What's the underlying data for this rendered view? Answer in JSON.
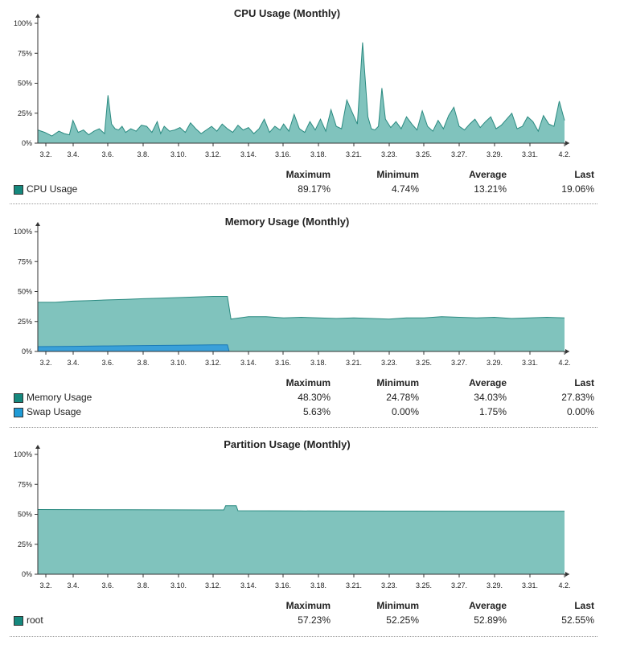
{
  "stat_headers": [
    "Maximum",
    "Minimum",
    "Average",
    "Last"
  ],
  "colors": {
    "fill": "#80c3bd",
    "stroke": "#2a8a80",
    "swap_fill": "#3aa0d9",
    "swap_stroke": "#1a7ab5",
    "swatch_teal": "#15887d",
    "swatch_blue": "#1f9bd6"
  },
  "panels": [
    {
      "id": "cpu",
      "title": "CPU Usage (Monthly)",
      "series_stats": [
        {
          "name": "CPU Usage",
          "swatch": "teal",
          "values": [
            "89.17%",
            "4.74%",
            "13.21%",
            "19.06%"
          ]
        }
      ]
    },
    {
      "id": "memory",
      "title": "Memory Usage (Monthly)",
      "series_stats": [
        {
          "name": "Memory Usage",
          "swatch": "teal",
          "values": [
            "48.30%",
            "24.78%",
            "34.03%",
            "27.83%"
          ]
        },
        {
          "name": "Swap Usage",
          "swatch": "blue",
          "values": [
            "5.63%",
            "0.00%",
            "1.75%",
            "0.00%"
          ]
        }
      ]
    },
    {
      "id": "partition",
      "title": "Partition Usage (Monthly)",
      "series_stats": [
        {
          "name": "root",
          "swatch": "teal",
          "values": [
            "57.23%",
            "52.25%",
            "52.89%",
            "52.55%"
          ]
        }
      ]
    }
  ],
  "chart_data": [
    {
      "type": "area",
      "title": "CPU Usage (Monthly)",
      "ylim": [
        0,
        100
      ],
      "y_ticks": [
        "0%",
        "25%",
        "50%",
        "75%",
        "100%"
      ],
      "x_ticks": [
        "3.2.",
        "3.4.",
        "3.6.",
        "3.8.",
        "3.10.",
        "3.12.",
        "3.14.",
        "3.16.",
        "3.18.",
        "3.21.",
        "3.23.",
        "3.25.",
        "3.27.",
        "3.29.",
        "3.31.",
        "4.2."
      ],
      "series": [
        {
          "name": "CPU Usage",
          "x_day": [
            0,
            0.4,
            0.8,
            1.2,
            1.5,
            1.8,
            2.0,
            2.3,
            2.6,
            2.9,
            3.2,
            3.5,
            3.8,
            4.0,
            4.2,
            4.4,
            4.6,
            4.8,
            5.0,
            5.3,
            5.6,
            5.9,
            6.2,
            6.5,
            6.8,
            7.0,
            7.2,
            7.5,
            7.8,
            8.1,
            8.4,
            8.7,
            9.0,
            9.3,
            9.6,
            9.9,
            10.2,
            10.5,
            10.8,
            11.1,
            11.4,
            11.7,
            12.0,
            12.3,
            12.6,
            12.9,
            13.2,
            13.5,
            13.8,
            14.0,
            14.3,
            14.6,
            14.9,
            15.2,
            15.5,
            15.8,
            16.1,
            16.4,
            16.7,
            17.0,
            17.3,
            17.6,
            17.9,
            18.2,
            18.5,
            18.8,
            19.0,
            19.2,
            19.4,
            19.6,
            19.8,
            20.1,
            20.4,
            20.7,
            21.0,
            21.3,
            21.6,
            21.9,
            22.2,
            22.5,
            22.8,
            23.1,
            23.4,
            23.7,
            24.0,
            24.3,
            24.6,
            24.9,
            25.2,
            25.5,
            25.8,
            26.1,
            26.4,
            26.7,
            27.0,
            27.3,
            27.6,
            27.9,
            28.2,
            28.5,
            28.8,
            29.1,
            29.4,
            29.7,
            30.0
          ],
          "y": [
            11,
            9,
            6,
            10,
            8,
            7,
            19,
            9,
            11,
            7,
            10,
            12,
            8,
            40,
            16,
            12,
            11,
            14,
            9,
            12,
            10,
            15,
            14,
            9,
            18,
            8,
            14,
            10,
            11,
            13,
            9,
            17,
            12,
            8,
            11,
            14,
            10,
            16,
            12,
            9,
            15,
            11,
            13,
            8,
            12,
            20,
            9,
            14,
            11,
            16,
            10,
            24,
            12,
            9,
            18,
            11,
            20,
            10,
            28,
            14,
            12,
            36,
            26,
            16,
            84,
            22,
            12,
            11,
            14,
            46,
            20,
            13,
            18,
            12,
            22,
            16,
            11,
            27,
            14,
            10,
            19,
            12,
            23,
            30,
            14,
            11,
            16,
            20,
            13,
            18,
            22,
            12,
            15,
            20,
            25,
            12,
            14,
            22,
            18,
            10,
            23,
            16,
            14,
            35,
            19
          ]
        }
      ]
    },
    {
      "type": "area",
      "title": "Memory Usage (Monthly)",
      "ylim": [
        0,
        100
      ],
      "y_ticks": [
        "0%",
        "25%",
        "50%",
        "75%",
        "100%"
      ],
      "x_ticks": [
        "3.2.",
        "3.4.",
        "3.6.",
        "3.8.",
        "3.10.",
        "3.12.",
        "3.14.",
        "3.16.",
        "3.18.",
        "3.21.",
        "3.23.",
        "3.25.",
        "3.27.",
        "3.29.",
        "3.31.",
        "4.2."
      ],
      "series": [
        {
          "name": "Memory Usage",
          "x_day": [
            0,
            1,
            2,
            3,
            4,
            5,
            6,
            7,
            8,
            9,
            10,
            10.8,
            11.0,
            11.5,
            12,
            13,
            14,
            15,
            16,
            17,
            18,
            19,
            20,
            21,
            22,
            23,
            24,
            25,
            26,
            27,
            28,
            29,
            30
          ],
          "y": [
            41,
            41,
            42,
            42.5,
            43,
            43.5,
            44,
            44.5,
            45,
            45.5,
            46,
            46,
            27,
            28,
            29,
            29,
            28,
            28.5,
            28,
            27.5,
            28,
            27.5,
            27,
            28,
            28,
            29,
            28.5,
            28,
            28.5,
            27.5,
            28,
            28.5,
            28
          ]
        },
        {
          "name": "Swap Usage",
          "x_day": [
            0,
            2,
            4,
            6,
            8,
            10,
            10.8,
            10.9,
            30
          ],
          "y": [
            4,
            4.3,
            4.6,
            5,
            5.2,
            5.5,
            5.6,
            0,
            0
          ]
        }
      ]
    },
    {
      "type": "area",
      "title": "Partition Usage (Monthly)",
      "ylim": [
        0,
        100
      ],
      "y_ticks": [
        "0%",
        "25%",
        "50%",
        "75%",
        "100%"
      ],
      "x_ticks": [
        "3.2.",
        "3.4.",
        "3.6.",
        "3.8.",
        "3.10.",
        "3.12.",
        "3.14.",
        "3.16.",
        "3.18.",
        "3.21.",
        "3.23.",
        "3.25.",
        "3.27.",
        "3.29.",
        "3.31.",
        "4.2."
      ],
      "series": [
        {
          "name": "root",
          "x_day": [
            0,
            5,
            10.6,
            10.7,
            11.3,
            11.4,
            15,
            20,
            25,
            30
          ],
          "y": [
            54,
            53.8,
            53.7,
            57.2,
            57.2,
            53,
            52.8,
            52.7,
            52.6,
            52.6
          ]
        }
      ]
    }
  ]
}
